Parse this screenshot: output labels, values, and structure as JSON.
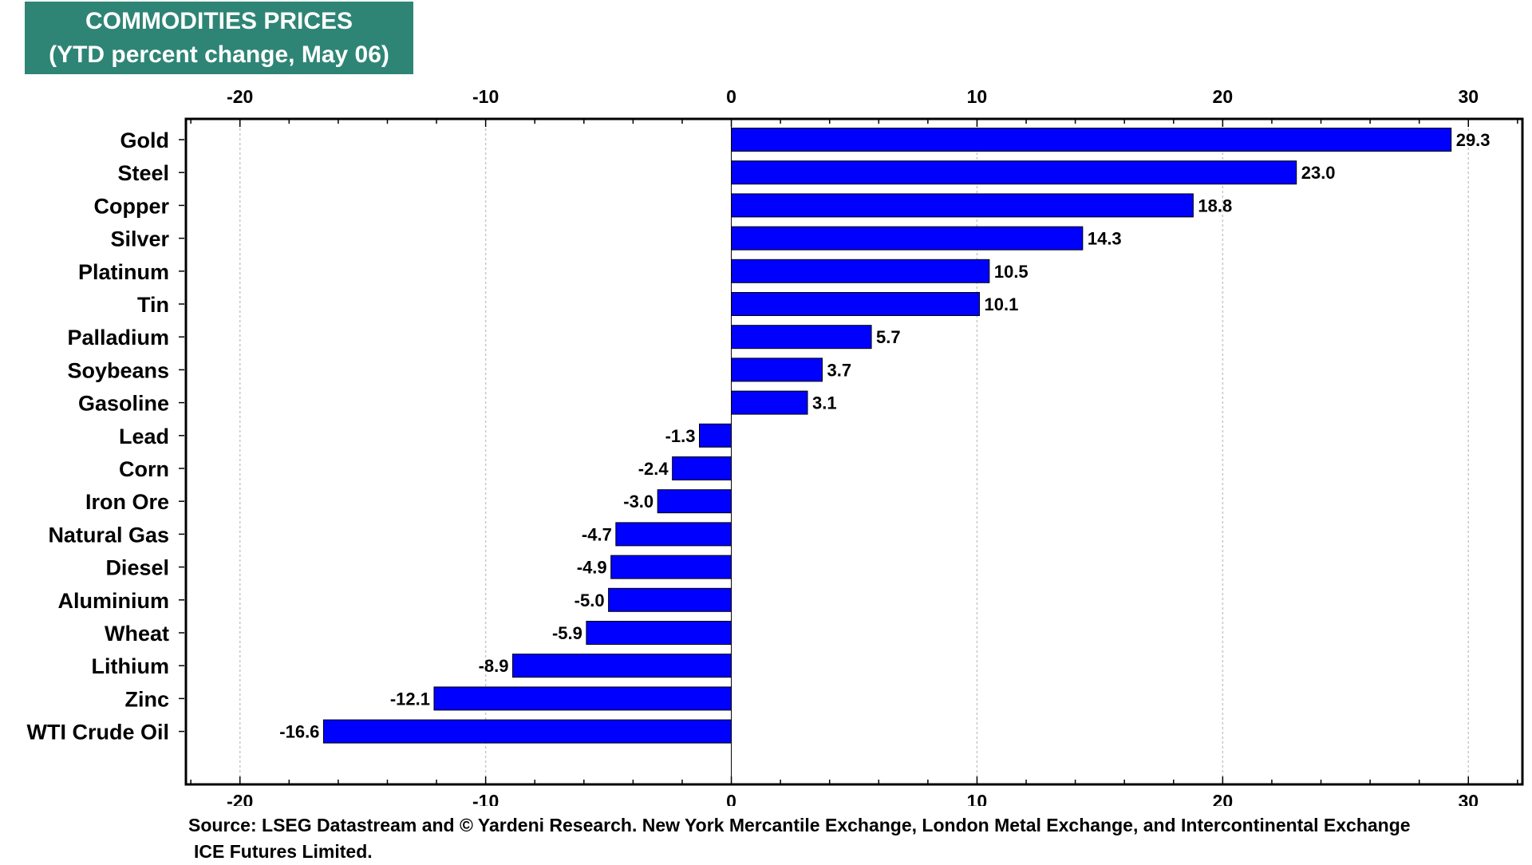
{
  "title": {
    "line1": "COMMODITIES PRICES",
    "line2": "(YTD percent change, May 06)"
  },
  "source": {
    "line1": "Source: LSEG Datastream and © Yardeni Research. New York Mercantile Exchange, London Metal Exchange, and Intercontinental Exchange",
    "line2": "ICE Futures Limited."
  },
  "colors": {
    "bar": "#0000ff",
    "title_bg": "#2e8575",
    "grid": "#c8c8c8"
  },
  "chart_data": {
    "type": "bar",
    "orientation": "horizontal",
    "categories": [
      "Gold",
      "Steel",
      "Copper",
      "Silver",
      "Platinum",
      "Tin",
      "Palladium",
      "Soybeans",
      "Gasoline",
      "Lead",
      "Corn",
      "Iron Ore",
      "Natural Gas",
      "Diesel",
      "Aluminium",
      "Wheat",
      "Lithium",
      "Zinc",
      "WTI Crude Oil"
    ],
    "values": [
      29.3,
      23.0,
      18.8,
      14.3,
      10.5,
      10.1,
      5.7,
      3.7,
      3.1,
      -1.3,
      -2.4,
      -3.0,
      -4.7,
      -4.9,
      -5.0,
      -5.9,
      -8.9,
      -12.1,
      -16.6
    ],
    "value_labels": [
      "29.3",
      "23.0",
      "18.8",
      "14.3",
      "10.5",
      "10.1",
      "5.7",
      "3.7",
      "3.1",
      "-1.3",
      "-2.4",
      "-3.0",
      "-4.7",
      "-4.9",
      "-5.0",
      "-5.9",
      "-8.9",
      "-12.1",
      "-16.6"
    ],
    "xlim": [
      -22.2,
      32.2
    ],
    "xticks": [
      -20,
      -10,
      0,
      10,
      20,
      30
    ],
    "xtick_labels": [
      "-20",
      "-10",
      "0",
      "10",
      "20",
      "30"
    ],
    "x_axis_position": "top-and-bottom",
    "grid": true,
    "legend": "none"
  }
}
